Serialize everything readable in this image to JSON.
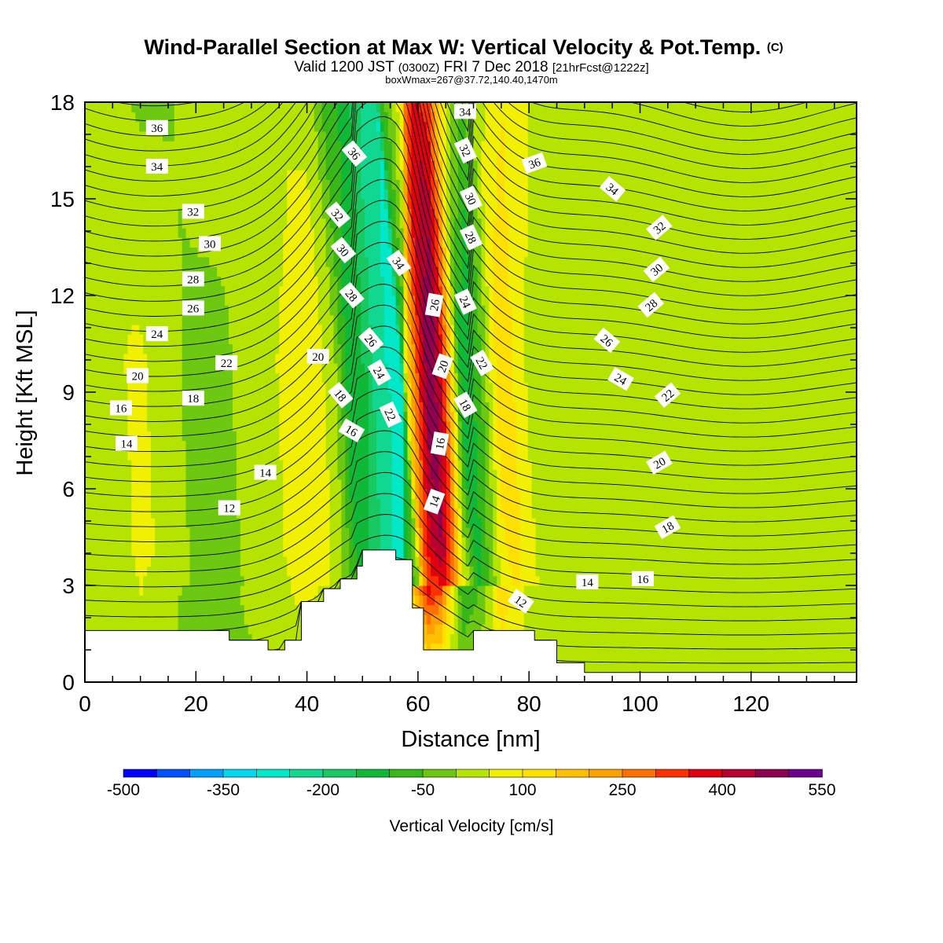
{
  "titles": {
    "main": "Wind-Parallel Section at Max W: Vertical Velocity & Pot.Temp.",
    "main_mark": "(C)",
    "sub_a": "Valid 1200 JST",
    "sub_b": "(0300Z)",
    "sub_c": "FRI 7 Dec 2018",
    "sub_d": "[21hrFcst@1222z]",
    "small": "boxWmax=267@37.72,140.40,1470m"
  },
  "chart_data": {
    "type": "heatmap",
    "title": "Wind-Parallel Section at Max W: Vertical Velocity & Pot.Temp.",
    "xlabel": "Distance [nm]",
    "ylabel": "Height [Kft MSL]",
    "xlim": [
      0,
      139
    ],
    "ylim": [
      0,
      18
    ],
    "x_ticks": [
      "0",
      "20",
      "40",
      "60",
      "80",
      "100",
      "120"
    ],
    "x_tick_values": [
      0,
      20,
      40,
      60,
      80,
      100,
      120
    ],
    "y_ticks": [
      "0",
      "3",
      "6",
      "9",
      "12",
      "15",
      "18"
    ],
    "y_tick_values": [
      0,
      3,
      6,
      9,
      12,
      15,
      18
    ],
    "grid": false,
    "colorbar": {
      "title": "Vertical Velocity [cm/s]",
      "labels": [
        "-500",
        "-350",
        "-200",
        "-50",
        "100",
        "250",
        "400",
        "550"
      ],
      "label_values": [
        -500,
        -350,
        -200,
        -50,
        100,
        250,
        400,
        550
      ],
      "min": -500,
      "step": 50,
      "colors": [
        "#0000ff",
        "#0050ff",
        "#00a0ff",
        "#00d8f0",
        "#00e8c8",
        "#10d890",
        "#18c860",
        "#10b838",
        "#38b818",
        "#6cc810",
        "#b4e400",
        "#f0f000",
        "#ffe000",
        "#ffc000",
        "#ffa000",
        "#ff7000",
        "#ff3000",
        "#e00010",
        "#b80030",
        "#900050",
        "#6c0090"
      ]
    },
    "field": {
      "x": [
        0,
        10,
        20,
        30,
        36,
        40,
        45,
        48,
        51,
        53,
        55,
        57,
        58,
        60,
        62,
        64,
        66,
        68,
        71,
        75,
        80,
        85,
        90,
        95,
        100,
        105,
        110,
        116,
        120,
        126,
        130,
        135,
        139
      ],
      "z": [
        20,
        30,
        -20,
        -5,
        0,
        0,
        -10,
        10,
        20,
        40,
        20,
        10,
        10,
        20,
        40,
        20,
        10,
        10,
        20,
        80,
        30,
        20,
        30,
        20,
        30,
        10,
        40,
        20,
        30,
        30,
        30,
        20,
        20
      ],
      "z_mid": [
        20,
        60,
        -20,
        10,
        60,
        100,
        20,
        -150,
        -150,
        -250,
        -250,
        -300,
        100,
        300,
        500,
        420,
        150,
        -150,
        -80,
        150,
        40,
        20,
        40,
        30,
        40,
        20,
        40,
        30,
        40,
        30,
        40,
        30,
        30
      ],
      "z_top": [
        -40,
        -40,
        60,
        -30,
        -30,
        40,
        -40,
        -90,
        -180,
        -200,
        -300,
        -250,
        150,
        350,
        550,
        400,
        100,
        -120,
        -80,
        150,
        80,
        20,
        30,
        40,
        60,
        30,
        40,
        40,
        20,
        20,
        20,
        20,
        20
      ]
    },
    "terrain": {
      "x": [
        0,
        5,
        10,
        15,
        20,
        25,
        26,
        30,
        32,
        33,
        35,
        36,
        38,
        39,
        40,
        42,
        43,
        45,
        46,
        48,
        49,
        50,
        52,
        55,
        56,
        58,
        59,
        60,
        61,
        62,
        64,
        66,
        68,
        70,
        72,
        74,
        76,
        78,
        80,
        81,
        82,
        84,
        85,
        86,
        88,
        90,
        95,
        100,
        110,
        120,
        130,
        139
      ],
      "z": [
        1.6,
        1.6,
        1.6,
        1.6,
        1.6,
        1.6,
        1.3,
        1.3,
        1.3,
        1.0,
        1.0,
        1.3,
        1.3,
        2.5,
        2.5,
        2.5,
        2.9,
        2.9,
        3.2,
        3.2,
        3.6,
        4.1,
        4.1,
        4.1,
        3.8,
        3.8,
        2.3,
        2.3,
        1.0,
        1.0,
        1.0,
        1.0,
        1.0,
        1.6,
        1.6,
        1.6,
        1.6,
        1.6,
        1.6,
        1.3,
        1.3,
        1.3,
        0.6,
        0.6,
        0.6,
        0.3,
        0.3,
        0.3,
        0.3,
        0.3,
        0.3,
        0.3
      ]
    },
    "contours": {
      "levels": [
        12,
        14,
        16,
        18,
        20,
        22,
        24,
        26,
        28,
        30,
        32,
        34,
        36
      ],
      "line_count": 40,
      "labels": [
        {
          "text": "36",
          "x": 13,
          "y": 17.2,
          "angle": 0
        },
        {
          "text": "34",
          "x": 13,
          "y": 16.0,
          "angle": 0
        },
        {
          "text": "32",
          "x": 19.5,
          "y": 14.6,
          "angle": 0
        },
        {
          "text": "30",
          "x": 22.5,
          "y": 13.6,
          "angle": 0
        },
        {
          "text": "28",
          "x": 19.5,
          "y": 12.5,
          "angle": 0
        },
        {
          "text": "26",
          "x": 19.5,
          "y": 11.6,
          "angle": 0
        },
        {
          "text": "24",
          "x": 13,
          "y": 10.8,
          "angle": 0
        },
        {
          "text": "22",
          "x": 25.5,
          "y": 9.9,
          "angle": 0
        },
        {
          "text": "20",
          "x": 9.5,
          "y": 9.5,
          "angle": 0
        },
        {
          "text": "20",
          "x": 42,
          "y": 10.1,
          "angle": 0
        },
        {
          "text": "18",
          "x": 19.5,
          "y": 8.8,
          "angle": 0
        },
        {
          "text": "16",
          "x": 6.5,
          "y": 8.5,
          "angle": 0
        },
        {
          "text": "14",
          "x": 7.5,
          "y": 7.4,
          "angle": 0
        },
        {
          "text": "14",
          "x": 32.5,
          "y": 6.5,
          "angle": 0
        },
        {
          "text": "12",
          "x": 26,
          "y": 5.4,
          "angle": 0
        },
        {
          "text": "36",
          "x": 48.5,
          "y": 16.4,
          "angle": 50
        },
        {
          "text": "32",
          "x": 45.5,
          "y": 14.5,
          "angle": 50
        },
        {
          "text": "30",
          "x": 46.5,
          "y": 13.4,
          "angle": 50
        },
        {
          "text": "28",
          "x": 48,
          "y": 12.0,
          "angle": 50
        },
        {
          "text": "26",
          "x": 51.5,
          "y": 10.6,
          "angle": 50
        },
        {
          "text": "24",
          "x": 53,
          "y": 9.6,
          "angle": 60
        },
        {
          "text": "22",
          "x": 55,
          "y": 8.3,
          "angle": 65
        },
        {
          "text": "18",
          "x": 46,
          "y": 8.9,
          "angle": 50
        },
        {
          "text": "16",
          "x": 48,
          "y": 7.8,
          "angle": 30
        },
        {
          "text": "34",
          "x": 56.5,
          "y": 13.0,
          "angle": 55
        },
        {
          "text": "34",
          "x": 68.5,
          "y": 17.7,
          "angle": 0
        },
        {
          "text": "32",
          "x": 68.5,
          "y": 16.5,
          "angle": 65
        },
        {
          "text": "30",
          "x": 69.5,
          "y": 15.0,
          "angle": 65
        },
        {
          "text": "28",
          "x": 69.5,
          "y": 13.8,
          "angle": 65
        },
        {
          "text": "26",
          "x": 63,
          "y": 11.7,
          "angle": -80
        },
        {
          "text": "24",
          "x": 68.5,
          "y": 11.8,
          "angle": 65
        },
        {
          "text": "22",
          "x": 71.5,
          "y": 9.9,
          "angle": 60
        },
        {
          "text": "20",
          "x": 64.5,
          "y": 9.8,
          "angle": -70
        },
        {
          "text": "18",
          "x": 68.5,
          "y": 8.6,
          "angle": 60
        },
        {
          "text": "16",
          "x": 64,
          "y": 7.4,
          "angle": -80
        },
        {
          "text": "14",
          "x": 63,
          "y": 5.6,
          "angle": -70
        },
        {
          "text": "12",
          "x": 78.5,
          "y": 2.5,
          "angle": 35
        },
        {
          "text": "36",
          "x": 81,
          "y": 16.1,
          "angle": -20
        },
        {
          "text": "34",
          "x": 95,
          "y": 15.3,
          "angle": 40
        },
        {
          "text": "32",
          "x": 103.5,
          "y": 14.1,
          "angle": -40
        },
        {
          "text": "30",
          "x": 103,
          "y": 12.8,
          "angle": -40
        },
        {
          "text": "28",
          "x": 102,
          "y": 11.7,
          "angle": -40
        },
        {
          "text": "26",
          "x": 94,
          "y": 10.6,
          "angle": 40
        },
        {
          "text": "24",
          "x": 96.5,
          "y": 9.4,
          "angle": 30
        },
        {
          "text": "22",
          "x": 105,
          "y": 8.9,
          "angle": -40
        },
        {
          "text": "20",
          "x": 103.5,
          "y": 6.8,
          "angle": -30
        },
        {
          "text": "18",
          "x": 105,
          "y": 4.8,
          "angle": -30
        },
        {
          "text": "16",
          "x": 100.5,
          "y": 3.2,
          "angle": 0
        },
        {
          "text": "14",
          "x": 90.5,
          "y": 3.1,
          "angle": 0
        }
      ]
    }
  }
}
